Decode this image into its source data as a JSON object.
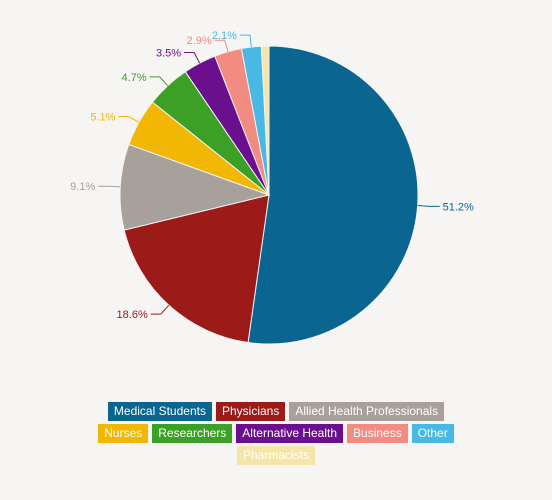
{
  "chart_data": {
    "type": "pie",
    "legend_position": "bottom",
    "series": [
      {
        "name": "Medical Students",
        "value": 51.2,
        "label": "51.2%",
        "color": "#0b6591"
      },
      {
        "name": "Physicians",
        "value": 18.6,
        "label": "18.6%",
        "color": "#9c1a17"
      },
      {
        "name": "Allied Health Professionals",
        "value": 9.1,
        "label": "9.1%",
        "color": "#a8a09a"
      },
      {
        "name": "Nurses",
        "value": 5.1,
        "label": "5.1%",
        "color": "#f2b705"
      },
      {
        "name": "Researchers",
        "value": 4.7,
        "label": "4.7%",
        "color": "#3c9f26"
      },
      {
        "name": "Alternative Health",
        "value": 3.5,
        "label": "3.5%",
        "color": "#6a0f8e"
      },
      {
        "name": "Business",
        "value": 2.9,
        "label": "2.9%",
        "color": "#f28b82"
      },
      {
        "name": "Other",
        "value": 2.1,
        "label": "2.1%",
        "color": "#4ab8e4"
      },
      {
        "name": "Pharmacists",
        "value": 0.8,
        "label": "",
        "color": "#f3e6a8"
      }
    ]
  }
}
